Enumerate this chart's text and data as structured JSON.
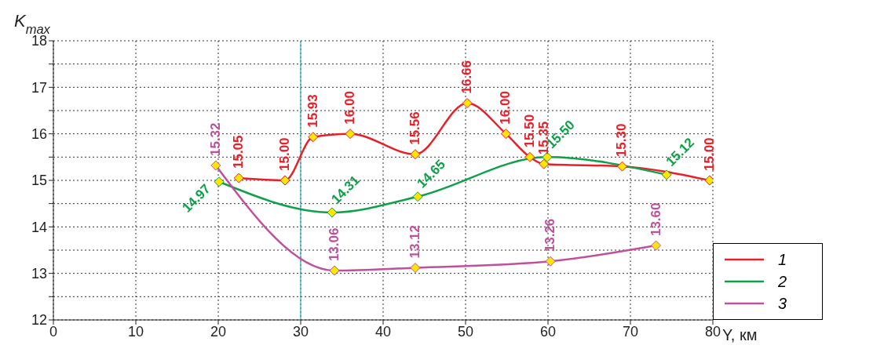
{
  "chart_data": {
    "type": "line",
    "ylabel": "K$_{max}$",
    "xlabel": "Y, км",
    "xlim": [
      0,
      80
    ],
    "xticks": [
      0,
      10,
      20,
      30,
      40,
      50,
      60,
      70,
      80
    ],
    "ylim": [
      12,
      18
    ],
    "yticks": [
      12,
      {
        "value": 12.5,
        "label": null
      },
      13,
      {
        "value": 13.5,
        "label": null
      },
      14,
      {
        "value": 14.5,
        "label": null
      },
      15,
      {
        "value": 15.5,
        "label": null
      },
      16,
      {
        "value": 16.5,
        "label": null
      },
      17,
      {
        "value": 17.5,
        "label": null
      },
      18
    ],
    "grid": true,
    "legend": "bottom right",
    "marker": "diamond",
    "line_style": "solid",
    "ref_lines": [
      {
        "axis": "x",
        "value": 30,
        "color": "#2ab3b3"
      }
    ],
    "series": [
      {
        "name": "1",
        "color": "#e8202a",
        "x": [
          22.5,
          28.1,
          31.5,
          36.0,
          43.9,
          50.2,
          54.9,
          57.8,
          59.5,
          69.0,
          79.6
        ],
        "values": [
          15.05,
          15.0,
          15.93,
          16.0,
          15.56,
          16.66,
          16.0,
          15.5,
          15.35,
          15.3,
          15.0
        ],
        "value_labels": [
          "15.05",
          "15.00",
          "15.93",
          "16.00",
          "15.56",
          "16.66",
          "16.00",
          "15.50",
          "15.35",
          "15.30",
          "15.00"
        ]
      },
      {
        "name": "2",
        "color": "#0fa04a",
        "x": [
          20.1,
          33.8,
          44.2,
          59.9,
          74.4
        ],
        "values": [
          14.97,
          14.31,
          14.65,
          15.5,
          15.12
        ],
        "value_labels": [
          "14.97",
          "14.31",
          "14.65",
          "15.50",
          "15.12"
        ]
      },
      {
        "name": "3",
        "color": "#c0509e",
        "x": [
          19.7,
          34.1,
          43.9,
          60.3,
          73.1
        ],
        "values": [
          15.32,
          13.06,
          13.12,
          13.26,
          13.6
        ],
        "value_labels": [
          "15.32",
          "13.06",
          "13.12",
          "13.26",
          "13.60"
        ]
      }
    ]
  }
}
